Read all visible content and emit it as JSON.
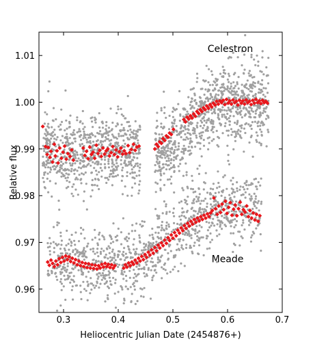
{
  "chart_data": {
    "type": "scatter",
    "title": "",
    "xlabel": "Heliocentric Julian Date (2454876+)",
    "ylabel": "Relative flux",
    "xlim": [
      0.255,
      0.7
    ],
    "ylim": [
      0.955,
      1.015
    ],
    "xticks": [
      0.3,
      0.4,
      0.5,
      0.6,
      0.7
    ],
    "xtick_labels": [
      "0.3",
      "0.4",
      "0.5",
      "0.6",
      "0.7"
    ],
    "yticks": [
      0.96,
      0.97,
      0.98,
      0.99,
      1.0,
      1.01
    ],
    "ytick_labels": [
      "0.96",
      "0.97",
      "0.98",
      "0.99",
      "1.00",
      "1.01"
    ],
    "grid": false,
    "annotations": [
      {
        "text": "Celestron",
        "x": 0.605,
        "y": 1.0115
      },
      {
        "text": "Meade",
        "x": 0.6,
        "y": 0.9665
      }
    ],
    "colors": {
      "raw_points": "#a0a0a0",
      "binned_points": "#e8161b"
    },
    "series": [
      {
        "kind": "raw",
        "segments": [
          {
            "x_start": 0.262,
            "x_end": 0.44,
            "n": 720,
            "model": "celestron",
            "scatter": 0.0042,
            "seed": 11
          },
          {
            "x_start": 0.467,
            "x_end": 0.675,
            "n": 900,
            "model": "celestron",
            "scatter": 0.0042,
            "seed": 23
          },
          {
            "x_start": 0.27,
            "x_end": 0.662,
            "n": 1050,
            "model": "meade",
            "scatter": 0.0038,
            "seed": 37
          }
        ]
      },
      {
        "kind": "binned",
        "points": [
          [
            0.262,
            0.9948
          ],
          [
            0.267,
            0.9905
          ],
          [
            0.27,
            0.9888
          ],
          [
            0.272,
            0.9903
          ],
          [
            0.275,
            0.9882
          ],
          [
            0.277,
            0.9895
          ],
          [
            0.28,
            0.9872
          ],
          [
            0.283,
            0.991
          ],
          [
            0.285,
            0.9885
          ],
          [
            0.288,
            0.9896
          ],
          [
            0.29,
            0.987
          ],
          [
            0.293,
            0.9902
          ],
          [
            0.296,
            0.988
          ],
          [
            0.299,
            0.9893
          ],
          [
            0.302,
            0.9906
          ],
          [
            0.305,
            0.9878
          ],
          [
            0.308,
            0.989
          ],
          [
            0.312,
            0.9884
          ],
          [
            0.315,
            0.9898
          ],
          [
            0.318,
            0.9876
          ],
          [
            0.336,
            0.9902
          ],
          [
            0.339,
            0.9886
          ],
          [
            0.342,
            0.9895
          ],
          [
            0.345,
            0.9879
          ],
          [
            0.348,
            0.9904
          ],
          [
            0.351,
            0.9888
          ],
          [
            0.354,
            0.9893
          ],
          [
            0.357,
            0.988
          ],
          [
            0.36,
            0.9908
          ],
          [
            0.363,
            0.989
          ],
          [
            0.366,
            0.9897
          ],
          [
            0.369,
            0.9884
          ],
          [
            0.372,
            0.9902
          ],
          [
            0.375,
            0.9889
          ],
          [
            0.378,
            0.9896
          ],
          [
            0.381,
            0.99
          ],
          [
            0.384,
            0.9885
          ],
          [
            0.387,
            0.9892
          ],
          [
            0.39,
            0.9905
          ],
          [
            0.393,
            0.9888
          ],
          [
            0.396,
            0.9898
          ],
          [
            0.399,
            0.9883
          ],
          [
            0.402,
            0.9894
          ],
          [
            0.405,
            0.9902
          ],
          [
            0.408,
            0.9889
          ],
          [
            0.411,
            0.9896
          ],
          [
            0.414,
            0.989
          ],
          [
            0.418,
            0.9907
          ],
          [
            0.421,
            0.9892
          ],
          [
            0.424,
            0.9899
          ],
          [
            0.428,
            0.991
          ],
          [
            0.431,
            0.9897
          ],
          [
            0.434,
            0.9904
          ],
          [
            0.438,
            0.9906
          ],
          [
            0.467,
            0.99
          ],
          [
            0.47,
            0.991
          ],
          [
            0.473,
            0.9905
          ],
          [
            0.476,
            0.9915
          ],
          [
            0.479,
            0.9912
          ],
          [
            0.482,
            0.9922
          ],
          [
            0.485,
            0.9918
          ],
          [
            0.488,
            0.9928
          ],
          [
            0.491,
            0.9925
          ],
          [
            0.494,
            0.9934
          ],
          [
            0.497,
            0.9931
          ],
          [
            0.501,
            0.9942
          ],
          [
            0.52,
            0.9963
          ],
          [
            0.523,
            0.9958
          ],
          [
            0.526,
            0.9968
          ],
          [
            0.529,
            0.9964
          ],
          [
            0.532,
            0.9971
          ],
          [
            0.535,
            0.9966
          ],
          [
            0.538,
            0.9975
          ],
          [
            0.541,
            0.997
          ],
          [
            0.544,
            0.998
          ],
          [
            0.547,
            0.9976
          ],
          [
            0.55,
            0.9984
          ],
          [
            0.553,
            0.998
          ],
          [
            0.556,
            0.9988
          ],
          [
            0.559,
            0.9984
          ],
          [
            0.562,
            0.9992
          ],
          [
            0.565,
            0.9987
          ],
          [
            0.568,
            0.9995
          ],
          [
            0.571,
            0.999
          ],
          [
            0.574,
            0.9998
          ],
          [
            0.577,
            0.9994
          ],
          [
            0.58,
            1.0002
          ],
          [
            0.583,
            0.9996
          ],
          [
            0.586,
            1.0003
          ],
          [
            0.589,
            0.9999
          ],
          [
            0.592,
            1.0004
          ],
          [
            0.595,
            0.9995
          ],
          [
            0.598,
            1.0006
          ],
          [
            0.601,
            0.9998
          ],
          [
            0.604,
            1.0003
          ],
          [
            0.607,
            0.9996
          ],
          [
            0.61,
            1.0005
          ],
          [
            0.613,
            0.9999
          ],
          [
            0.616,
            1.0002
          ],
          [
            0.619,
            0.9994
          ],
          [
            0.622,
            1.0004
          ],
          [
            0.625,
            0.9998
          ],
          [
            0.628,
            1.0003
          ],
          [
            0.631,
            0.9996
          ],
          [
            0.634,
            1.0005
          ],
          [
            0.637,
            0.9999
          ],
          [
            0.64,
            1.0002
          ],
          [
            0.643,
            0.9995
          ],
          [
            0.646,
            1.0004
          ],
          [
            0.649,
            0.9998
          ],
          [
            0.652,
            1.0006
          ],
          [
            0.655,
            0.9999
          ],
          [
            0.658,
            1.0003
          ],
          [
            0.661,
            0.9997
          ],
          [
            0.664,
            1.0004
          ],
          [
            0.667,
            0.9999
          ],
          [
            0.67,
            1.0002
          ],
          [
            0.673,
            0.9998
          ],
          [
            0.271,
            0.9658
          ],
          [
            0.274,
            0.9651
          ],
          [
            0.277,
            0.9662
          ],
          [
            0.28,
            0.9655
          ],
          [
            0.283,
            0.9648
          ],
          [
            0.286,
            0.966
          ],
          [
            0.289,
            0.9652
          ],
          [
            0.292,
            0.9665
          ],
          [
            0.295,
            0.9657
          ],
          [
            0.298,
            0.9668
          ],
          [
            0.301,
            0.966
          ],
          [
            0.304,
            0.9671
          ],
          [
            0.307,
            0.9663
          ],
          [
            0.31,
            0.9669
          ],
          [
            0.313,
            0.9659
          ],
          [
            0.316,
            0.9666
          ],
          [
            0.319,
            0.9656
          ],
          [
            0.322,
            0.9663
          ],
          [
            0.325,
            0.9652
          ],
          [
            0.328,
            0.966
          ],
          [
            0.331,
            0.965
          ],
          [
            0.334,
            0.9657
          ],
          [
            0.337,
            0.9648
          ],
          [
            0.34,
            0.9655
          ],
          [
            0.343,
            0.9646
          ],
          [
            0.346,
            0.9654
          ],
          [
            0.349,
            0.9645
          ],
          [
            0.352,
            0.9652
          ],
          [
            0.355,
            0.9644
          ],
          [
            0.358,
            0.9651
          ],
          [
            0.361,
            0.9643
          ],
          [
            0.364,
            0.965
          ],
          [
            0.367,
            0.9645
          ],
          [
            0.37,
            0.9653
          ],
          [
            0.373,
            0.9647
          ],
          [
            0.376,
            0.9655
          ],
          [
            0.379,
            0.9648
          ],
          [
            0.382,
            0.9653
          ],
          [
            0.385,
            0.9646
          ],
          [
            0.388,
            0.9652
          ],
          [
            0.391,
            0.9645
          ],
          [
            0.394,
            0.965
          ],
          [
            0.41,
            0.9645
          ],
          [
            0.413,
            0.9652
          ],
          [
            0.416,
            0.9647
          ],
          [
            0.419,
            0.9656
          ],
          [
            0.422,
            0.965
          ],
          [
            0.425,
            0.9658
          ],
          [
            0.428,
            0.9653
          ],
          [
            0.431,
            0.9662
          ],
          [
            0.434,
            0.9656
          ],
          [
            0.437,
            0.9666
          ],
          [
            0.44,
            0.966
          ],
          [
            0.443,
            0.967
          ],
          [
            0.446,
            0.9663
          ],
          [
            0.449,
            0.9674
          ],
          [
            0.452,
            0.9668
          ],
          [
            0.455,
            0.9679
          ],
          [
            0.458,
            0.9673
          ],
          [
            0.461,
            0.9684
          ],
          [
            0.464,
            0.9677
          ],
          [
            0.467,
            0.9689
          ],
          [
            0.47,
            0.9682
          ],
          [
            0.473,
            0.9694
          ],
          [
            0.476,
            0.9688
          ],
          [
            0.479,
            0.9699
          ],
          [
            0.482,
            0.9693
          ],
          [
            0.485,
            0.9705
          ],
          [
            0.488,
            0.9698
          ],
          [
            0.491,
            0.971
          ],
          [
            0.494,
            0.9704
          ],
          [
            0.497,
            0.9716
          ],
          [
            0.5,
            0.9709
          ],
          [
            0.503,
            0.9721
          ],
          [
            0.506,
            0.9714
          ],
          [
            0.509,
            0.9726
          ],
          [
            0.512,
            0.972
          ],
          [
            0.515,
            0.9731
          ],
          [
            0.518,
            0.9725
          ],
          [
            0.521,
            0.9736
          ],
          [
            0.524,
            0.973
          ],
          [
            0.527,
            0.9741
          ],
          [
            0.53,
            0.9735
          ],
          [
            0.533,
            0.9745
          ],
          [
            0.536,
            0.9739
          ],
          [
            0.539,
            0.9749
          ],
          [
            0.542,
            0.9743
          ],
          [
            0.545,
            0.9752
          ],
          [
            0.548,
            0.9746
          ],
          [
            0.551,
            0.9755
          ],
          [
            0.554,
            0.9749
          ],
          [
            0.557,
            0.9758
          ],
          [
            0.56,
            0.9752
          ],
          [
            0.563,
            0.9761
          ],
          [
            0.566,
            0.9755
          ],
          [
            0.569,
            0.9763
          ],
          [
            0.572,
            0.9768
          ],
          [
            0.575,
            0.9795
          ],
          [
            0.578,
            0.9772
          ],
          [
            0.581,
            0.976
          ],
          [
            0.584,
            0.9778
          ],
          [
            0.587,
            0.9764
          ],
          [
            0.59,
            0.9782
          ],
          [
            0.593,
            0.977
          ],
          [
            0.596,
            0.9788
          ],
          [
            0.599,
            0.9762
          ],
          [
            0.602,
            0.9775
          ],
          [
            0.605,
            0.9785
          ],
          [
            0.608,
            0.9758
          ],
          [
            0.611,
            0.9771
          ],
          [
            0.614,
            0.978
          ],
          [
            0.617,
            0.9757
          ],
          [
            0.62,
            0.9772
          ],
          [
            0.623,
            0.9786
          ],
          [
            0.626,
            0.976
          ],
          [
            0.629,
            0.977
          ],
          [
            0.632,
            0.9765
          ],
          [
            0.635,
            0.9778
          ],
          [
            0.638,
            0.9755
          ],
          [
            0.641,
            0.9768
          ],
          [
            0.644,
            0.9752
          ],
          [
            0.647,
            0.9763
          ],
          [
            0.65,
            0.9748
          ],
          [
            0.653,
            0.976
          ],
          [
            0.656,
            0.9745
          ],
          [
            0.659,
            0.9757
          ]
        ]
      }
    ]
  }
}
